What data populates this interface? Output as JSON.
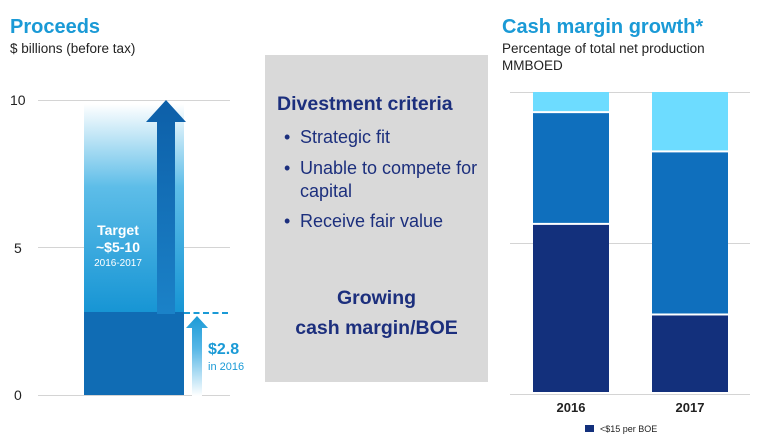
{
  "left_chart": {
    "title": "Proceeds",
    "subtitle": "$ billions (before tax)",
    "y_ticks": [
      "10",
      "5",
      "0"
    ],
    "target_label": "Target",
    "target_range": "~$5-10",
    "target_period": "2016-2017",
    "achieved_value": "$2.8",
    "achieved_period": "in 2016"
  },
  "middle": {
    "heading": "Divestment criteria",
    "bullets": [
      "Strategic fit",
      "Unable to compete for capital",
      "Receive fair value"
    ],
    "footer_line1": "Growing",
    "footer_line2": "cash margin/BOE"
  },
  "right_chart": {
    "title": "Cash margin growth*",
    "subtitle_line1": "Percentage of total net production",
    "subtitle_line2": "MMBOED",
    "legend_label": "<$15 per BOE"
  },
  "colors": {
    "accent": "#1a9ad6",
    "navy": "#1c2f7d",
    "mid_blue": "#0f6fbd",
    "light_blue": "#6ddcff",
    "dark_navy": "#13307c",
    "grey_panel": "#d9d9d9"
  },
  "chart_data": [
    {
      "type": "bar",
      "title": "Proceeds",
      "ylabel": "$ billions (before tax)",
      "ylim": [
        0,
        10
      ],
      "y_ticks": [
        0,
        5,
        10
      ],
      "grid": true,
      "series": [
        {
          "name": "Target",
          "low": 5,
          "high": 10,
          "period": "2016-2017"
        },
        {
          "name": "$2.8",
          "value": 2.8,
          "period": "in 2016"
        }
      ]
    },
    {
      "type": "bar",
      "title": "Cash margin growth*",
      "ylabel": "Percentage of total net production",
      "categories": [
        "2016",
        "2017"
      ],
      "ylim": [
        0,
        100
      ],
      "stacked": true,
      "series": [
        {
          "name": "<$15 per BOE",
          "values": [
            56,
            26
          ]
        },
        {
          "values": [
            37,
            54
          ]
        },
        {
          "values": [
            7,
            20
          ]
        }
      ]
    }
  ]
}
